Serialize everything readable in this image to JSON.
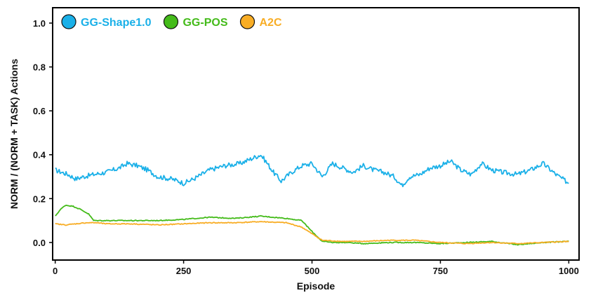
{
  "chart_data": {
    "type": "line",
    "title": "",
    "xlabel": "Episode",
    "ylabel": "NORM / (NORM + TASK) Actions",
    "xlim": [
      -5,
      1020
    ],
    "ylim": [
      -0.08,
      1.07
    ],
    "xticks": [
      0,
      250,
      500,
      750,
      1000
    ],
    "yticks": [
      0.0,
      0.2,
      0.4,
      0.6,
      0.8,
      1.0
    ],
    "xtick_labels": [
      "0",
      "250",
      "500",
      "750",
      "1000"
    ],
    "ytick_labels": [
      "0.0",
      "0.2",
      "0.4",
      "0.6",
      "0.8",
      "1.0"
    ],
    "legend_position": "top-left",
    "series": [
      {
        "name": "GG-Shape1.0",
        "color": "#1ab0e8",
        "x": [
          0,
          25,
          40,
          55,
          75,
          100,
          125,
          140,
          160,
          180,
          200,
          225,
          240,
          250,
          270,
          300,
          330,
          360,
          380,
          400,
          410,
          425,
          440,
          460,
          480,
          500,
          520,
          540,
          560,
          580,
          600,
          620,
          640,
          660,
          675,
          690,
          710,
          730,
          750,
          770,
          790,
          810,
          830,
          850,
          870,
          900,
          925,
          950,
          975,
          1000
        ],
        "values": [
          0.33,
          0.31,
          0.29,
          0.3,
          0.31,
          0.32,
          0.34,
          0.36,
          0.35,
          0.33,
          0.3,
          0.29,
          0.28,
          0.27,
          0.29,
          0.33,
          0.35,
          0.36,
          0.38,
          0.4,
          0.37,
          0.32,
          0.28,
          0.32,
          0.35,
          0.36,
          0.3,
          0.36,
          0.34,
          0.32,
          0.35,
          0.33,
          0.32,
          0.3,
          0.26,
          0.3,
          0.31,
          0.34,
          0.35,
          0.37,
          0.33,
          0.31,
          0.36,
          0.33,
          0.32,
          0.31,
          0.33,
          0.36,
          0.31,
          0.27
        ]
      },
      {
        "name": "GG-POS",
        "color": "#44bb1a",
        "x": [
          0,
          10,
          20,
          35,
          50,
          65,
          75,
          100,
          150,
          200,
          250,
          300,
          350,
          400,
          450,
          480,
          500,
          520,
          540,
          570,
          600,
          650,
          700,
          750,
          800,
          850,
          900,
          950,
          1000
        ],
        "values": [
          0.12,
          0.15,
          0.17,
          0.165,
          0.15,
          0.13,
          0.1,
          0.1,
          0.1,
          0.1,
          0.105,
          0.115,
          0.11,
          0.12,
          0.11,
          0.1,
          0.05,
          0.005,
          0.0,
          0.0,
          -0.005,
          0.0,
          0.0,
          -0.005,
          0.0,
          0.005,
          -0.01,
          0.0,
          0.005
        ]
      },
      {
        "name": "A2C",
        "color": "#f8ad25",
        "x": [
          0,
          20,
          40,
          60,
          80,
          100,
          150,
          200,
          250,
          300,
          350,
          400,
          450,
          480,
          500,
          520,
          560,
          600,
          650,
          700,
          750,
          800,
          850,
          900,
          950,
          1000
        ],
        "values": [
          0.085,
          0.08,
          0.085,
          0.09,
          0.09,
          0.085,
          0.085,
          0.08,
          0.085,
          0.09,
          0.09,
          0.095,
          0.09,
          0.07,
          0.04,
          0.01,
          0.005,
          0.005,
          0.01,
          0.01,
          0.0,
          -0.005,
          0.0,
          -0.005,
          0.0,
          0.005
        ]
      }
    ]
  }
}
